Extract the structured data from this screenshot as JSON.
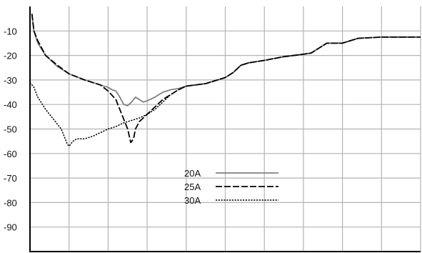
{
  "chart_data": {
    "type": "line",
    "title": "",
    "xlabel": "",
    "ylabel": "",
    "xlim": [
      0,
      100
    ],
    "ylim": [
      -100,
      0
    ],
    "y_ticks": [
      -10,
      -20,
      -30,
      -40,
      -50,
      -60,
      -70,
      -80,
      -90
    ],
    "y_tick_labels": [
      "-10",
      "-20",
      "-30",
      "-40",
      "-50",
      "-60",
      "-70",
      "-80",
      "-90"
    ],
    "x_grid": [
      0,
      10,
      20,
      30,
      40,
      50,
      60,
      70,
      80,
      90,
      100
    ],
    "grid": true,
    "legend_placement": "bottom-center",
    "series": [
      {
        "name": "20A",
        "color": "#808080",
        "dash": "solid",
        "points": [
          [
            0.5,
            -3
          ],
          [
            1,
            -10
          ],
          [
            2,
            -15
          ],
          [
            4,
            -20
          ],
          [
            7,
            -24.5
          ],
          [
            10,
            -27.5
          ],
          [
            14,
            -30
          ],
          [
            18,
            -32
          ],
          [
            20,
            -33
          ],
          [
            21,
            -34
          ],
          [
            22,
            -34.5
          ],
          [
            23,
            -37
          ],
          [
            24,
            -40
          ],
          [
            25,
            -40.5
          ],
          [
            26,
            -39
          ],
          [
            27,
            -37
          ],
          [
            28,
            -38
          ],
          [
            29,
            -39
          ],
          [
            30,
            -38.5
          ],
          [
            32,
            -37
          ],
          [
            34,
            -35
          ],
          [
            36,
            -34
          ],
          [
            38,
            -33.5
          ],
          [
            40,
            -32.5
          ],
          [
            45,
            -31.5
          ],
          [
            50,
            -29
          ],
          [
            52,
            -27
          ],
          [
            54,
            -24
          ],
          [
            56,
            -23
          ],
          [
            60,
            -22
          ],
          [
            65,
            -20.5
          ],
          [
            70,
            -19.5
          ],
          [
            72,
            -19
          ],
          [
            74,
            -17
          ],
          [
            76,
            -15
          ],
          [
            80,
            -15
          ],
          [
            82,
            -14
          ],
          [
            84,
            -13
          ],
          [
            90,
            -12.5
          ],
          [
            100,
            -12.5
          ]
        ]
      },
      {
        "name": "25A",
        "color": "#000000",
        "dash": "long-dash",
        "points": [
          [
            0.5,
            -3
          ],
          [
            1,
            -10
          ],
          [
            2,
            -14
          ],
          [
            4,
            -20
          ],
          [
            7,
            -24
          ],
          [
            10,
            -27.5
          ],
          [
            14,
            -30
          ],
          [
            18,
            -32
          ],
          [
            20,
            -34.5
          ],
          [
            22,
            -38
          ],
          [
            23,
            -42
          ],
          [
            24,
            -46
          ],
          [
            25,
            -50
          ],
          [
            25.8,
            -55.5
          ],
          [
            26.5,
            -54
          ],
          [
            27,
            -50
          ],
          [
            28,
            -47
          ],
          [
            30,
            -44
          ],
          [
            32,
            -41
          ],
          [
            34,
            -38
          ],
          [
            36,
            -36
          ],
          [
            38,
            -34
          ],
          [
            40,
            -32.5
          ],
          [
            45,
            -31.5
          ],
          [
            50,
            -29
          ],
          [
            52,
            -27
          ],
          [
            54,
            -24
          ],
          [
            56,
            -23
          ],
          [
            60,
            -22
          ],
          [
            65,
            -20.5
          ],
          [
            70,
            -19.5
          ],
          [
            72,
            -19
          ],
          [
            74,
            -17
          ],
          [
            76,
            -15
          ],
          [
            80,
            -15
          ],
          [
            82,
            -14
          ],
          [
            84,
            -13
          ],
          [
            90,
            -12.5
          ],
          [
            100,
            -12.5
          ]
        ]
      },
      {
        "name": "30A",
        "color": "#000000",
        "dash": "dotted",
        "points": [
          [
            0,
            -31
          ],
          [
            1,
            -33
          ],
          [
            2,
            -37
          ],
          [
            4,
            -42
          ],
          [
            6,
            -46
          ],
          [
            8,
            -50
          ],
          [
            9.5,
            -56
          ],
          [
            10,
            -57
          ],
          [
            11,
            -55
          ],
          [
            12,
            -54
          ],
          [
            14,
            -54
          ],
          [
            16,
            -53
          ],
          [
            18,
            -51.5
          ],
          [
            20,
            -50
          ],
          [
            22,
            -49
          ],
          [
            24,
            -47.5
          ],
          [
            26,
            -46.5
          ],
          [
            28,
            -45.5
          ],
          [
            30,
            -44
          ],
          [
            32,
            -42
          ],
          [
            34,
            -39
          ],
          [
            36,
            -36
          ],
          [
            38,
            -34
          ],
          [
            40,
            -32.5
          ],
          [
            45,
            -31.5
          ],
          [
            50,
            -29
          ],
          [
            52,
            -27
          ],
          [
            54,
            -24
          ],
          [
            56,
            -23
          ],
          [
            60,
            -22
          ],
          [
            65,
            -20.5
          ],
          [
            70,
            -19.5
          ],
          [
            72,
            -19
          ],
          [
            74,
            -17
          ],
          [
            76,
            -15
          ],
          [
            80,
            -15
          ],
          [
            82,
            -14
          ],
          [
            84,
            -13
          ],
          [
            90,
            -12.5
          ],
          [
            100,
            -12.5
          ]
        ]
      }
    ]
  }
}
